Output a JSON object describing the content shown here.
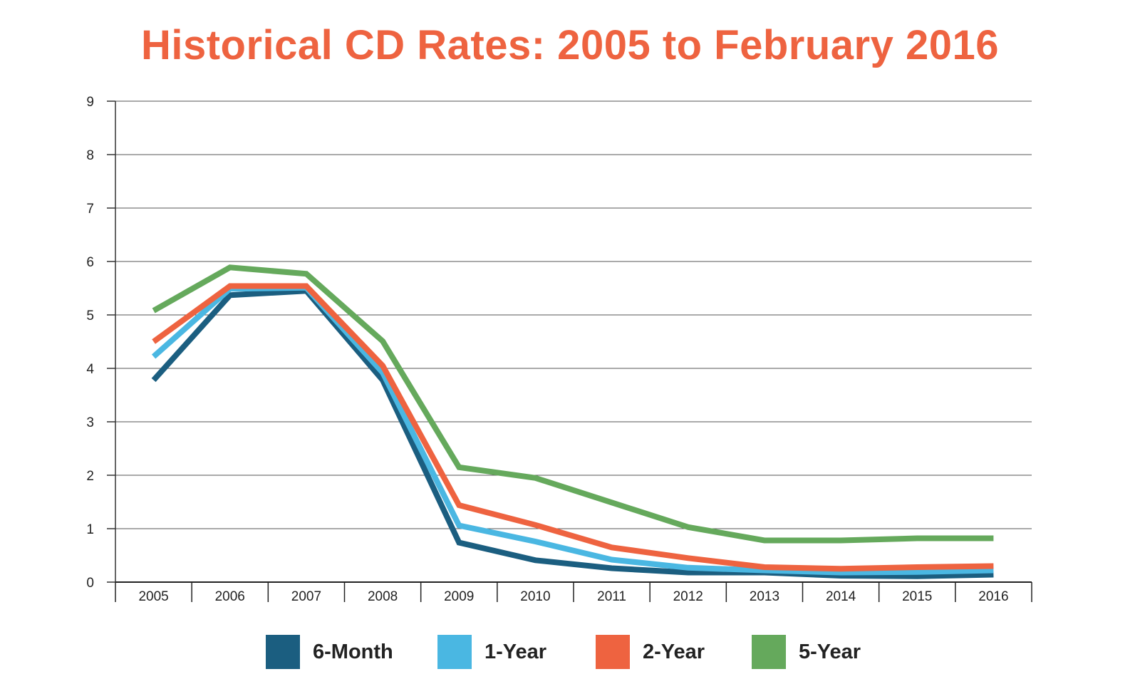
{
  "chart_data": {
    "type": "line",
    "title": "Historical CD Rates: 2005 to February 2016",
    "xlabel": "",
    "ylabel": "",
    "categories": [
      "2005",
      "2006",
      "2007",
      "2008",
      "2009",
      "2010",
      "2011",
      "2012",
      "2013",
      "2014",
      "2015",
      "2016"
    ],
    "ylim": [
      0,
      9
    ],
    "yticks": [
      0,
      1,
      2,
      3,
      4,
      5,
      6,
      7,
      8,
      9
    ],
    "grid": true,
    "legend_position": "bottom",
    "series": [
      {
        "name": "6-Month",
        "color": "#1b5e80",
        "values": [
          3.78,
          5.37,
          5.45,
          3.78,
          0.74,
          0.41,
          0.26,
          0.18,
          0.18,
          0.12,
          0.11,
          0.14
        ]
      },
      {
        "name": "1-Year",
        "color": "#4ab7e2",
        "values": [
          4.22,
          5.49,
          5.51,
          3.92,
          1.06,
          0.76,
          0.42,
          0.27,
          0.22,
          0.18,
          0.19,
          0.22
        ]
      },
      {
        "name": "2-Year",
        "color": "#ee6340",
        "values": [
          4.5,
          5.54,
          5.54,
          4.05,
          1.44,
          1.07,
          0.65,
          0.45,
          0.28,
          0.25,
          0.28,
          0.3
        ]
      },
      {
        "name": "5-Year",
        "color": "#65a95c",
        "values": [
          5.08,
          5.89,
          5.77,
          4.51,
          2.15,
          1.95,
          1.49,
          1.03,
          0.78,
          0.78,
          0.82,
          0.82
        ]
      }
    ]
  }
}
